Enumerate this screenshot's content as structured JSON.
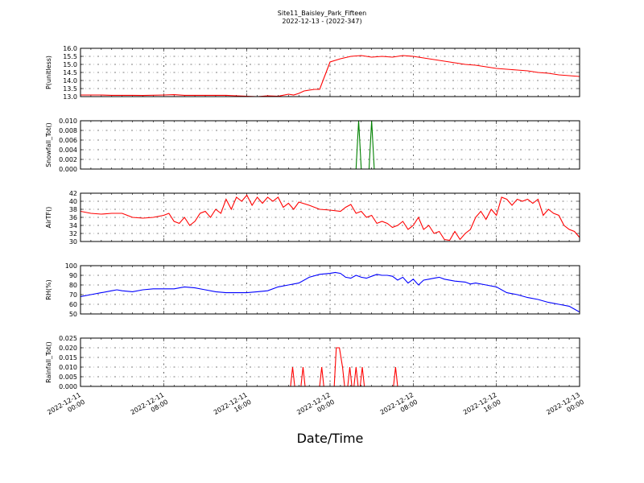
{
  "figure": {
    "title_line1": "Site11_Baisley_Park_Fifteen",
    "title_line2": "2022-12-13 - (2022-347)",
    "xlabel": "Date/Time",
    "x_ticks": [
      [
        "2022-12-11",
        "00:00"
      ],
      [
        "2022-12-11",
        "08:00"
      ],
      [
        "2022-12-11",
        "16:00"
      ],
      [
        "2022-12-12",
        "00:00"
      ],
      [
        "2022-12-12",
        "08:00"
      ],
      [
        "2022-12-12",
        "16:00"
      ],
      [
        "2022-12-13",
        "00:00"
      ]
    ]
  },
  "chart_data": [
    {
      "type": "line",
      "ylabel": "P(unitless)",
      "ylim": [
        13.0,
        16.0
      ],
      "yticks": [
        "13.0",
        "13.5",
        "14.0",
        "14.5",
        "15.0",
        "15.5",
        "16.0"
      ],
      "x_unit": "hours since 2022-12-11 00:00",
      "xlim": [
        0,
        48
      ],
      "grid": true,
      "series": [
        {
          "color": "#ff0000",
          "points": [
            [
              0,
              13.1
            ],
            [
              2,
              13.1
            ],
            [
              3,
              13.08
            ],
            [
              5,
              13.08
            ],
            [
              6,
              13.07
            ],
            [
              8,
              13.1
            ],
            [
              9,
              13.12
            ],
            [
              10,
              13.08
            ],
            [
              12,
              13.08
            ],
            [
              14,
              13.08
            ],
            [
              15,
              13.05
            ],
            [
              16,
              13.02
            ],
            [
              17,
              13.0
            ],
            [
              18,
              13.05
            ],
            [
              19,
              13.02
            ],
            [
              20,
              13.15
            ],
            [
              20.5,
              13.1
            ],
            [
              21,
              13.2
            ],
            [
              21.5,
              13.35
            ],
            [
              22,
              13.4
            ],
            [
              22.5,
              13.45
            ],
            [
              23,
              13.45
            ],
            [
              23.5,
              14.3
            ],
            [
              24,
              15.15
            ],
            [
              25,
              15.35
            ],
            [
              26,
              15.5
            ],
            [
              27,
              15.55
            ],
            [
              28,
              15.45
            ],
            [
              29,
              15.5
            ],
            [
              30,
              15.45
            ],
            [
              31,
              15.55
            ],
            [
              32,
              15.5
            ],
            [
              33,
              15.4
            ],
            [
              34,
              15.3
            ],
            [
              35,
              15.2
            ],
            [
              36,
              15.1
            ],
            [
              37,
              15.0
            ],
            [
              38,
              14.95
            ],
            [
              39,
              14.85
            ],
            [
              40,
              14.75
            ],
            [
              41,
              14.7
            ],
            [
              42,
              14.65
            ],
            [
              43,
              14.6
            ],
            [
              44,
              14.5
            ],
            [
              45,
              14.45
            ],
            [
              46,
              14.35
            ],
            [
              47,
              14.3
            ],
            [
              48,
              14.25
            ]
          ]
        }
      ]
    },
    {
      "type": "line",
      "ylabel": "Snowfall_Tot()",
      "ylim": [
        0.0,
        0.01
      ],
      "yticks": [
        "0.000",
        "0.002",
        "0.004",
        "0.006",
        "0.008",
        "0.010"
      ],
      "x_unit": "hours since 2022-12-11 00:00",
      "xlim": [
        0,
        48
      ],
      "grid": true,
      "series": [
        {
          "color": "#008000",
          "points": [
            [
              0,
              0
            ],
            [
              26.5,
              0
            ],
            [
              26.75,
              0.01
            ],
            [
              27.0,
              0
            ],
            [
              27.75,
              0
            ],
            [
              28.0,
              0.01
            ],
            [
              28.25,
              0
            ],
            [
              48,
              0
            ]
          ]
        }
      ]
    },
    {
      "type": "line",
      "ylabel": "AirTF()",
      "ylim": [
        30,
        42
      ],
      "yticks": [
        "30",
        "32",
        "34",
        "36",
        "38",
        "40",
        "42"
      ],
      "x_unit": "hours since 2022-12-11 00:00",
      "xlim": [
        0,
        48
      ],
      "grid": true,
      "series": [
        {
          "color": "#ff0000",
          "points": [
            [
              0,
              37.5
            ],
            [
              1,
              37
            ],
            [
              2,
              36.8
            ],
            [
              3,
              37
            ],
            [
              4,
              37
            ],
            [
              4.5,
              36.5
            ],
            [
              5,
              36
            ],
            [
              6,
              35.8
            ],
            [
              7,
              36
            ],
            [
              8,
              36.5
            ],
            [
              8.5,
              37
            ],
            [
              9,
              35
            ],
            [
              9.5,
              34.5
            ],
            [
              10,
              36
            ],
            [
              10.5,
              34
            ],
            [
              11,
              35
            ],
            [
              11.5,
              37
            ],
            [
              12,
              37.5
            ],
            [
              12.5,
              36
            ],
            [
              13,
              38
            ],
            [
              13.5,
              37
            ],
            [
              14,
              40.5
            ],
            [
              14.5,
              38
            ],
            [
              15,
              41
            ],
            [
              15.5,
              40
            ],
            [
              16,
              41.5
            ],
            [
              16.5,
              39
            ],
            [
              17,
              41
            ],
            [
              17.5,
              39.5
            ],
            [
              18,
              41
            ],
            [
              18.5,
              40
            ],
            [
              19,
              41
            ],
            [
              19.5,
              38.5
            ],
            [
              20,
              39.5
            ],
            [
              20.5,
              38
            ],
            [
              21,
              39.8
            ],
            [
              22,
              39
            ],
            [
              23,
              38
            ],
            [
              24,
              37.8
            ],
            [
              25,
              37.5
            ],
            [
              25.5,
              38.5
            ],
            [
              26,
              39.2
            ],
            [
              26.5,
              37
            ],
            [
              27,
              37.5
            ],
            [
              27.5,
              36
            ],
            [
              28,
              36.5
            ],
            [
              28.5,
              34.5
            ],
            [
              29,
              35
            ],
            [
              29.5,
              34.5
            ],
            [
              30,
              33.5
            ],
            [
              30.5,
              34
            ],
            [
              31,
              35
            ],
            [
              31.5,
              33
            ],
            [
              32,
              34
            ],
            [
              32.5,
              36
            ],
            [
              33,
              33
            ],
            [
              33.5,
              34
            ],
            [
              34,
              32
            ],
            [
              34.5,
              32.5
            ],
            [
              35,
              30.5
            ],
            [
              35.5,
              30.3
            ],
            [
              36,
              32.5
            ],
            [
              36.5,
              30.5
            ],
            [
              37,
              32
            ],
            [
              37.5,
              33
            ],
            [
              38,
              36
            ],
            [
              38.5,
              37.5
            ],
            [
              39,
              35.5
            ],
            [
              39.5,
              38
            ],
            [
              40,
              36.5
            ],
            [
              40.5,
              41
            ],
            [
              41,
              40.5
            ],
            [
              41.5,
              39
            ],
            [
              42,
              40.5
            ],
            [
              42.5,
              40
            ],
            [
              43,
              40.5
            ],
            [
              43.5,
              39.5
            ],
            [
              44,
              40.5
            ],
            [
              44.5,
              36.5
            ],
            [
              45,
              38
            ],
            [
              45.5,
              37
            ],
            [
              46,
              36.5
            ],
            [
              46.5,
              34
            ],
            [
              47,
              33
            ],
            [
              47.5,
              32.5
            ],
            [
              48,
              31
            ]
          ]
        }
      ]
    },
    {
      "type": "line",
      "ylabel": "RH(%)",
      "ylim": [
        50,
        100
      ],
      "yticks": [
        "50",
        "60",
        "70",
        "80",
        "90",
        "100"
      ],
      "x_unit": "hours since 2022-12-11 00:00",
      "xlim": [
        0,
        48
      ],
      "grid": true,
      "series": [
        {
          "color": "#0000ff",
          "points": [
            [
              0,
              68
            ],
            [
              1,
              70
            ],
            [
              2,
              72
            ],
            [
              3,
              74
            ],
            [
              3.5,
              75
            ],
            [
              4,
              74
            ],
            [
              5,
              73
            ],
            [
              6,
              75
            ],
            [
              7,
              76
            ],
            [
              8,
              76
            ],
            [
              9,
              76
            ],
            [
              10,
              78
            ],
            [
              11,
              77
            ],
            [
              12,
              75
            ],
            [
              13,
              73
            ],
            [
              14,
              72
            ],
            [
              15,
              72
            ],
            [
              16,
              72
            ],
            [
              17,
              73
            ],
            [
              18,
              74
            ],
            [
              19,
              78
            ],
            [
              20,
              80
            ],
            [
              21,
              82
            ],
            [
              22,
              88
            ],
            [
              23,
              91
            ],
            [
              24,
              92
            ],
            [
              24.5,
              93
            ],
            [
              25,
              92
            ],
            [
              25.5,
              88
            ],
            [
              26,
              87
            ],
            [
              26.5,
              90
            ],
            [
              27,
              88
            ],
            [
              27.5,
              87
            ],
            [
              28,
              89
            ],
            [
              28.5,
              91
            ],
            [
              29,
              90
            ],
            [
              29.5,
              90
            ],
            [
              30,
              89
            ],
            [
              30.5,
              85
            ],
            [
              31,
              88
            ],
            [
              31.5,
              82
            ],
            [
              32,
              86
            ],
            [
              32.5,
              80
            ],
            [
              33,
              85
            ],
            [
              33.5,
              86
            ],
            [
              34,
              87
            ],
            [
              34.5,
              88
            ],
            [
              35,
              86
            ],
            [
              36,
              84
            ],
            [
              37,
              83
            ],
            [
              37.5,
              81
            ],
            [
              38,
              82
            ],
            [
              39,
              80
            ],
            [
              40,
              78
            ],
            [
              41,
              72
            ],
            [
              42,
              70
            ],
            [
              43,
              67
            ],
            [
              44,
              65
            ],
            [
              45,
              62
            ],
            [
              46,
              60
            ],
            [
              47,
              58
            ],
            [
              47.5,
              55
            ],
            [
              48,
              52
            ],
            [
              48.3,
              51
            ],
            [
              48.6,
              53
            ],
            [
              49,
              52
            ],
            [
              49.5,
              55
            ],
            [
              50,
              58
            ]
          ]
        }
      ]
    },
    {
      "type": "line",
      "ylabel": "Rainfall_Tot()",
      "ylim": [
        0.0,
        0.025
      ],
      "yticks": [
        "0.000",
        "0.005",
        "0.010",
        "0.015",
        "0.020",
        "0.025"
      ],
      "x_unit": "hours since 2022-12-11 00:00",
      "xlim": [
        0,
        48
      ],
      "grid": true,
      "series": [
        {
          "color": "#ff0000",
          "points": [
            [
              0,
              0
            ],
            [
              20.2,
              0
            ],
            [
              20.4,
              0.01
            ],
            [
              20.6,
              0
            ],
            [
              21.2,
              0
            ],
            [
              21.4,
              0.01
            ],
            [
              21.6,
              0
            ],
            [
              23.0,
              0
            ],
            [
              23.2,
              0.01
            ],
            [
              23.4,
              0
            ],
            [
              24.4,
              0
            ],
            [
              24.6,
              0.02
            ],
            [
              24.9,
              0.02
            ],
            [
              25.2,
              0.01
            ],
            [
              25.4,
              0
            ],
            [
              25.7,
              0
            ],
            [
              25.9,
              0.01
            ],
            [
              26.1,
              0
            ],
            [
              26.3,
              0
            ],
            [
              26.5,
              0.01
            ],
            [
              26.7,
              0
            ],
            [
              26.9,
              0
            ],
            [
              27.1,
              0.01
            ],
            [
              27.3,
              0
            ],
            [
              30.1,
              0
            ],
            [
              30.3,
              0.01
            ],
            [
              30.5,
              0
            ],
            [
              48,
              0
            ]
          ]
        }
      ]
    }
  ]
}
